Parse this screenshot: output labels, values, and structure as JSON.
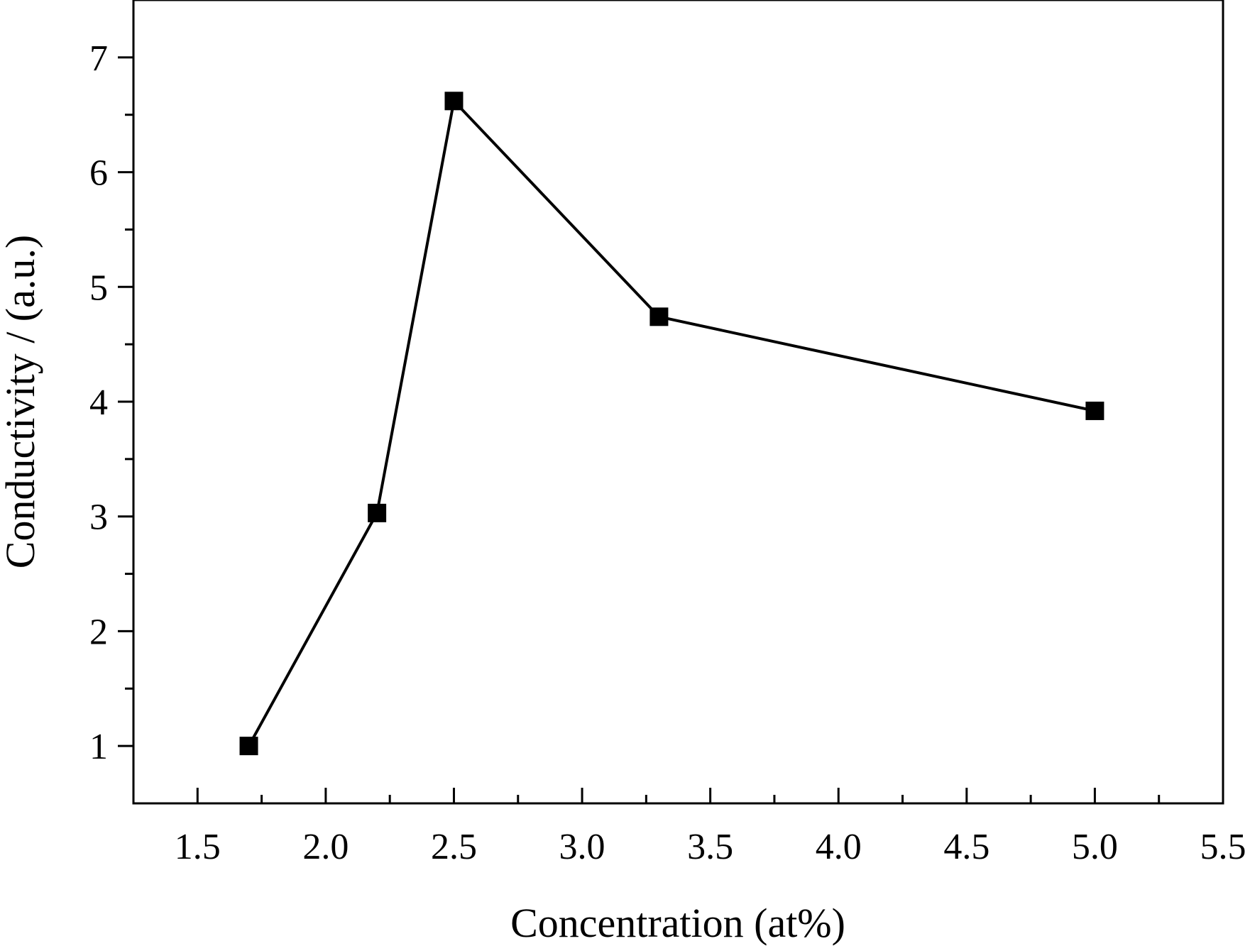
{
  "chart_data": {
    "type": "line",
    "title": "",
    "xlabel": "Concentration (at%)",
    "ylabel": "Conductivity / (a.u.)",
    "xlim": [
      1.25,
      5.5
    ],
    "ylim": [
      0.5,
      7.5
    ],
    "x_ticks": [
      1.5,
      2.0,
      2.5,
      3.0,
      3.5,
      4.0,
      4.5,
      5.0,
      5.5
    ],
    "x_tick_labels": [
      "1.5",
      "2.0",
      "2.5",
      "3.0",
      "3.5",
      "4.0",
      "4.5",
      "5.0",
      "5.5"
    ],
    "y_ticks": [
      1,
      2,
      3,
      4,
      5,
      6,
      7
    ],
    "y_tick_labels": [
      "1",
      "2",
      "3",
      "4",
      "5",
      "6",
      "7"
    ],
    "grid": false,
    "legend": "none",
    "marker": "square",
    "color": "#000000",
    "series": [
      {
        "x": [
          1.7,
          2.2,
          2.5,
          3.3,
          5.0
        ],
        "y": [
          1.0,
          3.03,
          6.62,
          4.74,
          3.92
        ]
      }
    ]
  }
}
